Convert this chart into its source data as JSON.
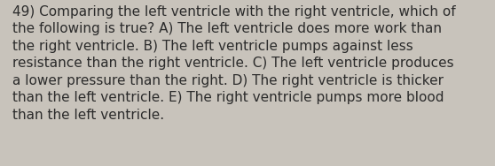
{
  "lines": [
    "49) Comparing the left ventricle with the right ventricle, which of",
    "the following is true? A) The left ventricle does more work than",
    "the right ventricle. B) The left ventricle pumps against less",
    "resistance than the right ventricle. C) The left ventricle produces",
    "a lower pressure than the right. D) The right ventricle is thicker",
    "than the left ventricle. E) The right ventricle pumps more blood",
    "than the left ventricle."
  ],
  "background_color": "#c8c3bb",
  "text_color": "#2b2b2b",
  "font_size": 11.0,
  "fig_width": 5.58,
  "fig_height": 1.88,
  "dpi": 100
}
